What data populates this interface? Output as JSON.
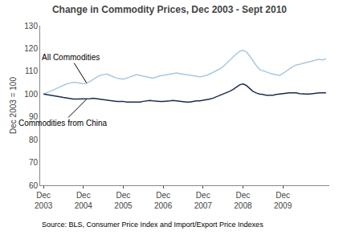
{
  "chart_data": {
    "type": "line",
    "title": "Change in Commodity Prices, Dec 2003 - Sept 2010",
    "y_label": "Dec 2003 = 100",
    "source": "Source: BLS, Consumer Price Index and Import/Export Price Indexes",
    "annotations": [
      "All Commodities",
      "Commodities from China"
    ],
    "categories": [
      "Dec\n2003",
      null,
      null,
      null,
      null,
      null,
      null,
      null,
      null,
      null,
      null,
      null,
      "Dec\n2004",
      null,
      null,
      null,
      null,
      null,
      null,
      null,
      null,
      null,
      null,
      null,
      "Dec\n2005",
      null,
      null,
      null,
      null,
      null,
      null,
      null,
      null,
      null,
      null,
      null,
      "Dec\n2006",
      null,
      null,
      null,
      null,
      null,
      null,
      null,
      null,
      null,
      null,
      null,
      "Dec\n2007",
      null,
      null,
      null,
      null,
      null,
      null,
      null,
      null,
      null,
      null,
      null,
      "Dec\n2008",
      null,
      null,
      null,
      null,
      null,
      null,
      null,
      null,
      null,
      null,
      null,
      "Dec\n2009",
      null,
      null,
      null,
      null,
      null,
      null,
      null,
      null,
      null,
      null,
      null,
      null,
      null
    ],
    "ylim": [
      60,
      130
    ],
    "yticks": [
      60,
      70,
      80,
      90,
      100,
      110,
      120,
      130
    ],
    "grid": false,
    "series": [
      {
        "color": "#a8c8e0",
        "values": [
          100.0,
          100.5,
          101.2,
          101.8,
          102.5,
          103.0,
          103.8,
          104.5,
          104.8,
          105.2,
          105.0,
          104.8,
          104.5,
          104.8,
          105.5,
          106.5,
          107.5,
          108.2,
          108.5,
          108.8,
          108.2,
          107.5,
          107.0,
          106.8,
          106.5,
          107.0,
          107.5,
          108.0,
          108.5,
          108.2,
          107.8,
          107.5,
          107.2,
          107.0,
          107.5,
          108.0,
          108.2,
          108.5,
          108.8,
          109.0,
          109.2,
          109.0,
          108.8,
          108.5,
          108.2,
          108.0,
          107.8,
          107.5,
          107.8,
          108.2,
          108.8,
          109.5,
          110.2,
          111.0,
          112.0,
          113.5,
          114.8,
          116.2,
          117.5,
          118.8,
          119.2,
          118.5,
          116.8,
          114.5,
          112.5,
          110.8,
          110.2,
          109.8,
          109.2,
          108.8,
          108.5,
          108.2,
          109.0,
          110.0,
          111.2,
          112.0,
          112.8,
          113.0,
          113.5,
          113.8,
          114.2,
          114.5,
          115.0,
          115.2,
          115.0,
          115.5
        ]
      },
      {
        "color": "#1a2e4a",
        "values": [
          100.0,
          99.8,
          99.5,
          99.2,
          99.0,
          98.8,
          98.5,
          98.2,
          98.0,
          97.8,
          97.8,
          97.8,
          97.8,
          97.8,
          98.0,
          98.2,
          98.0,
          97.8,
          97.5,
          97.2,
          97.0,
          96.8,
          96.8,
          96.8,
          96.8,
          96.5,
          96.5,
          96.5,
          96.5,
          96.5,
          96.8,
          97.0,
          97.2,
          97.0,
          96.8,
          96.8,
          96.8,
          96.8,
          97.0,
          97.2,
          97.0,
          96.8,
          96.5,
          96.5,
          96.5,
          96.8,
          97.0,
          97.0,
          97.2,
          97.5,
          97.8,
          98.2,
          98.8,
          99.2,
          99.8,
          100.5,
          101.2,
          102.0,
          103.0,
          104.0,
          104.5,
          103.8,
          102.5,
          101.2,
          100.5,
          100.0,
          99.8,
          99.5,
          99.5,
          99.5,
          99.8,
          100.0,
          100.0,
          100.2,
          100.5,
          100.5,
          100.5,
          100.2,
          100.0,
          100.0,
          100.0,
          100.2,
          100.5,
          100.5,
          100.5,
          100.5
        ]
      }
    ]
  }
}
